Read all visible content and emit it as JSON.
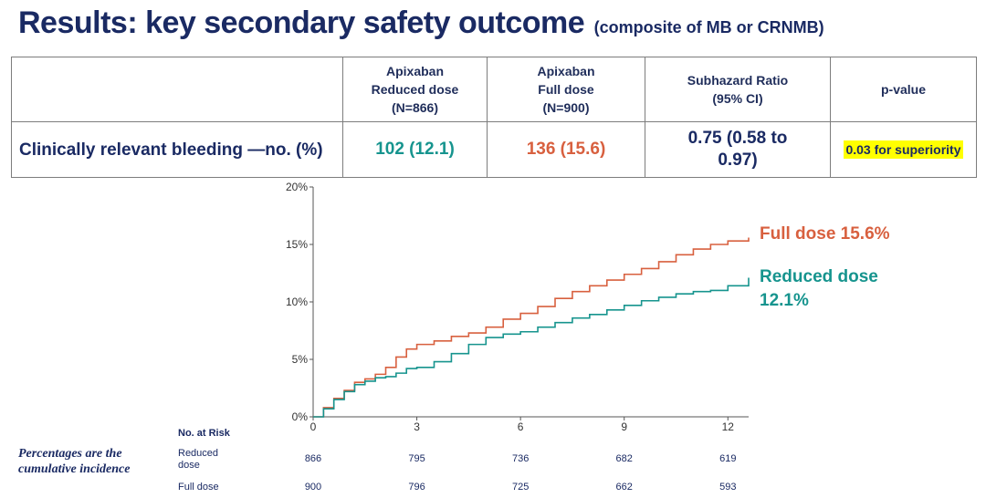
{
  "title": {
    "main": "Results: key secondary safety outcome",
    "sub": "(composite of MB or CRNMB)"
  },
  "table": {
    "headers": [
      "",
      "Apixaban\nReduced dose\n(N=866)",
      "Apixaban\nFull dose\n(N=900)",
      "Subhazard Ratio\n(95% CI)",
      "p-value"
    ],
    "row": {
      "label": "Clinically relevant bleeding —no. (%)",
      "reduced": "102 (12.1)",
      "full": "136 (15.6)",
      "ratio": "0.75 (0.58 to 0.97)",
      "pvalue": "0.03 for superiority"
    }
  },
  "colors": {
    "full": "#d8603f",
    "reduced": "#16948e",
    "navy": "#1a2a63"
  },
  "chart_data": {
    "type": "line",
    "xlim": [
      0,
      12.6
    ],
    "ylim": [
      0,
      20
    ],
    "x_ticks": [
      "0",
      "3",
      "6",
      "9",
      "12"
    ],
    "y_ticks": [
      "0%",
      "5%",
      "10%",
      "15%",
      "20%"
    ],
    "series": [
      {
        "name": "Full dose 15.6%",
        "x": [
          0,
          0.3,
          0.6,
          0.9,
          1.2,
          1.5,
          1.8,
          2.1,
          2.4,
          2.7,
          3.0,
          3.5,
          4.0,
          4.5,
          5.0,
          5.5,
          6.0,
          6.5,
          7.0,
          7.5,
          8.0,
          8.5,
          9.0,
          9.5,
          10.0,
          10.5,
          11.0,
          11.5,
          12.0,
          12.6
        ],
        "values": [
          0,
          0.8,
          1.6,
          2.3,
          3.0,
          3.3,
          3.7,
          4.3,
          5.2,
          5.9,
          6.3,
          6.6,
          7.0,
          7.3,
          7.8,
          8.5,
          9.0,
          9.6,
          10.3,
          10.9,
          11.4,
          11.9,
          12.4,
          12.9,
          13.5,
          14.1,
          14.6,
          15.0,
          15.3,
          15.6
        ]
      },
      {
        "name": "Reduced dose 12.1%",
        "x": [
          0,
          0.3,
          0.6,
          0.9,
          1.2,
          1.5,
          1.8,
          2.1,
          2.4,
          2.7,
          3.0,
          3.5,
          4.0,
          4.5,
          5.0,
          5.5,
          6.0,
          6.5,
          7.0,
          7.5,
          8.0,
          8.5,
          9.0,
          9.5,
          10.0,
          10.5,
          11.0,
          11.5,
          12.0,
          12.6
        ],
        "values": [
          0,
          0.7,
          1.5,
          2.2,
          2.8,
          3.1,
          3.4,
          3.5,
          3.8,
          4.2,
          4.3,
          4.8,
          5.5,
          6.3,
          6.9,
          7.2,
          7.4,
          7.8,
          8.2,
          8.6,
          8.9,
          9.3,
          9.7,
          10.1,
          10.4,
          10.7,
          10.9,
          11.0,
          11.4,
          12.1
        ]
      }
    ],
    "labels": {
      "full": "Full dose 15.6%",
      "reduced_line1": "Reduced dose",
      "reduced_line2": "12.1%"
    },
    "at_risk": {
      "header": "No. at Risk",
      "rows": [
        {
          "label1": "Reduced",
          "label2": "dose",
          "values": [
            "866",
            "795",
            "736",
            "682",
            "619"
          ]
        },
        {
          "label1": "Full dose",
          "label2": "",
          "values": [
            "900",
            "796",
            "725",
            "662",
            "593"
          ]
        }
      ]
    }
  },
  "note": "Percentages are the cumulative incidence"
}
